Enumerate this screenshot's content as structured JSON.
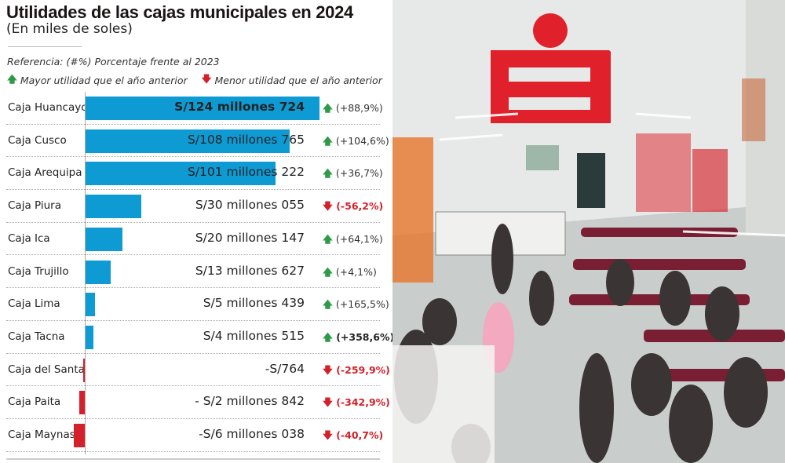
{
  "chart_data": {
    "type": "bar",
    "orientation": "horizontal",
    "title": "Utilidades de las cajas municipales en 2024",
    "subtitle": "(En miles de soles)",
    "reference": "Referencia: (#%) Porcentaje frente al 2023",
    "legend": [
      {
        "icon": "arrow-up-icon",
        "color": "#2e9a48",
        "label": "Mayor utilidad que el año anterior"
      },
      {
        "icon": "arrow-down-icon",
        "color": "#d3202a",
        "label": "Menor utilidad que el año anterior"
      }
    ],
    "colors": {
      "positive": "#0e9bd4",
      "negative": "#d3202a"
    },
    "categories": [
      "Caja Huancayo",
      "Caja Cusco",
      "Caja Arequipa",
      "Caja Piura",
      "Caja Ica",
      "Caja Trujillo",
      "Caja Lima",
      "Caja Tacna",
      "Caja del Santa",
      "Caja Paita",
      "Caja Maynas"
    ],
    "values": [
      124724,
      108765,
      101222,
      30055,
      20147,
      13627,
      5439,
      4515,
      -764,
      -2842,
      -6038
    ],
    "value_labels": [
      "S/124 millones 724",
      "S/108 millones 765",
      "S/101 millones 222",
      "S/30 millones 055",
      "S/20 millones  147",
      "S/13 millones 627",
      "S/5 millones 439",
      "S/4 millones 515",
      "-S/764",
      "- S/2 millones 842",
      "-S/6 millones 038"
    ],
    "change_labels": [
      "(+88,9%)",
      "(+104,6%)",
      "(+36,7%)",
      "(-56,2%)",
      "(+64,1%)",
      "(+4,1%)",
      "(+165,5%)",
      "(+358,6%)",
      "(-259,9%)",
      "(-342,9%)",
      "(-40,7%)"
    ],
    "change_direction": [
      "up",
      "up",
      "up",
      "down",
      "up",
      "up",
      "up",
      "up",
      "down",
      "down",
      "down"
    ],
    "arrows": {
      "up": "🡅",
      "down": "🡇"
    }
  },
  "photo": {
    "description_icon": "bank-branch-photo",
    "logo_color": "#e0202a"
  }
}
